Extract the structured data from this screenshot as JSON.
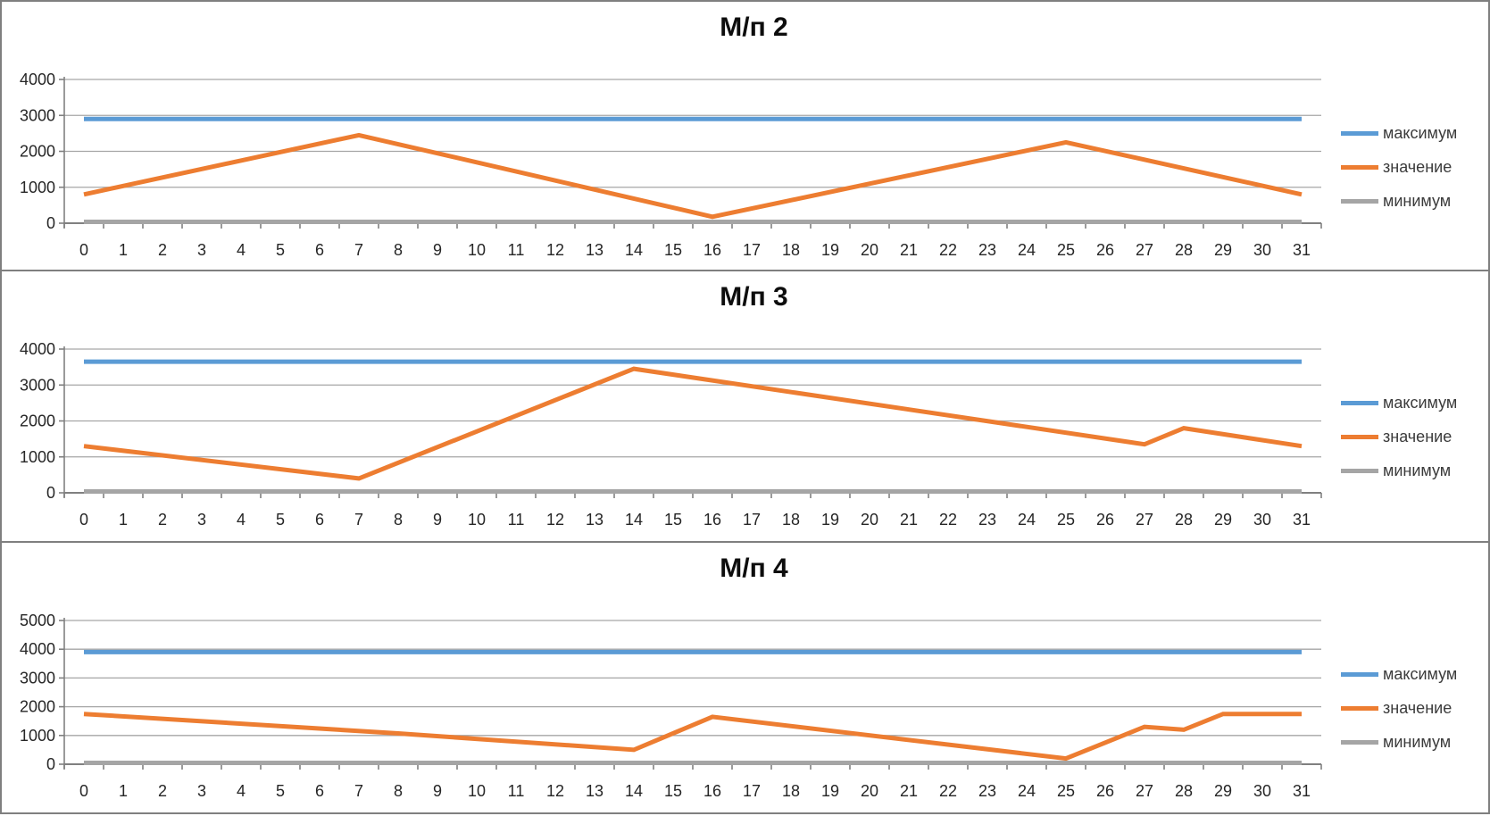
{
  "chart_data": [
    {
      "type": "line",
      "title": "М/п 2",
      "xlabel": "",
      "ylabel": "",
      "ylim": [
        0,
        4000
      ],
      "y_ticks": [
        0,
        1000,
        2000,
        3000,
        4000
      ],
      "grid": true,
      "legend_position": "right",
      "categories": [
        "0",
        "1",
        "2",
        "3",
        "4",
        "5",
        "6",
        "7",
        "8",
        "9",
        "10",
        "11",
        "12",
        "13",
        "14",
        "15",
        "16",
        "17",
        "18",
        "19",
        "20",
        "21",
        "22",
        "23",
        "24",
        "25",
        "26",
        "27",
        "28",
        "29",
        "30",
        "31"
      ],
      "series": [
        {
          "name": "максимум",
          "color": "#5B9BD5",
          "style": "constant",
          "value": 2900
        },
        {
          "name": "значение",
          "color": "#ED7D31",
          "style": "polyline",
          "points": [
            [
              0,
              800
            ],
            [
              7,
              2450
            ],
            [
              16,
              180
            ],
            [
              25,
              2250
            ],
            [
              31,
              800
            ]
          ]
        },
        {
          "name": "минимум",
          "color": "#A5A5A5",
          "style": "constant",
          "value": 0
        }
      ]
    },
    {
      "type": "line",
      "title": "М/п 3",
      "xlabel": "",
      "ylabel": "",
      "ylim": [
        0,
        4000
      ],
      "y_ticks": [
        0,
        1000,
        2000,
        3000,
        4000
      ],
      "grid": true,
      "legend_position": "right",
      "categories": [
        "0",
        "1",
        "2",
        "3",
        "4",
        "5",
        "6",
        "7",
        "8",
        "9",
        "10",
        "11",
        "12",
        "13",
        "14",
        "15",
        "16",
        "17",
        "18",
        "19",
        "20",
        "21",
        "22",
        "23",
        "24",
        "25",
        "26",
        "27",
        "28",
        "29",
        "30",
        "31"
      ],
      "series": [
        {
          "name": "максимум",
          "color": "#5B9BD5",
          "style": "constant",
          "value": 3650
        },
        {
          "name": "значение",
          "color": "#ED7D31",
          "style": "polyline",
          "points": [
            [
              0,
              1300
            ],
            [
              7,
              400
            ],
            [
              14,
              3450
            ],
            [
              27,
              1350
            ],
            [
              28,
              1800
            ],
            [
              31,
              1300
            ]
          ]
        },
        {
          "name": "минимум",
          "color": "#A5A5A5",
          "style": "constant",
          "value": 0
        }
      ]
    },
    {
      "type": "line",
      "title": "М/п 4",
      "xlabel": "",
      "ylabel": "",
      "ylim": [
        0,
        5000
      ],
      "y_ticks": [
        0,
        1000,
        2000,
        3000,
        4000,
        5000
      ],
      "grid": true,
      "legend_position": "right",
      "categories": [
        "0",
        "1",
        "2",
        "3",
        "4",
        "5",
        "6",
        "7",
        "8",
        "9",
        "10",
        "11",
        "12",
        "13",
        "14",
        "15",
        "16",
        "17",
        "18",
        "19",
        "20",
        "21",
        "22",
        "23",
        "24",
        "25",
        "26",
        "27",
        "28",
        "29",
        "30",
        "31"
      ],
      "series": [
        {
          "name": "максимум",
          "color": "#5B9BD5",
          "style": "constant",
          "value": 3900
        },
        {
          "name": "значение",
          "color": "#ED7D31",
          "style": "polyline",
          "points": [
            [
              0,
              1750
            ],
            [
              8,
              1070
            ],
            [
              14,
              500
            ],
            [
              16,
              1650
            ],
            [
              25,
              200
            ],
            [
              27,
              1300
            ],
            [
              28,
              1200
            ],
            [
              29,
              1750
            ],
            [
              31,
              1750
            ]
          ]
        },
        {
          "name": "минимум",
          "color": "#A5A5A5",
          "style": "constant",
          "value": 0
        }
      ]
    }
  ],
  "style_colors": {
    "panel_border": "#7f7f7f",
    "axis_line": "#808080",
    "gridline": "#a6a6a6",
    "tick_text": "#262626",
    "title_text": "#0d0d0d"
  }
}
